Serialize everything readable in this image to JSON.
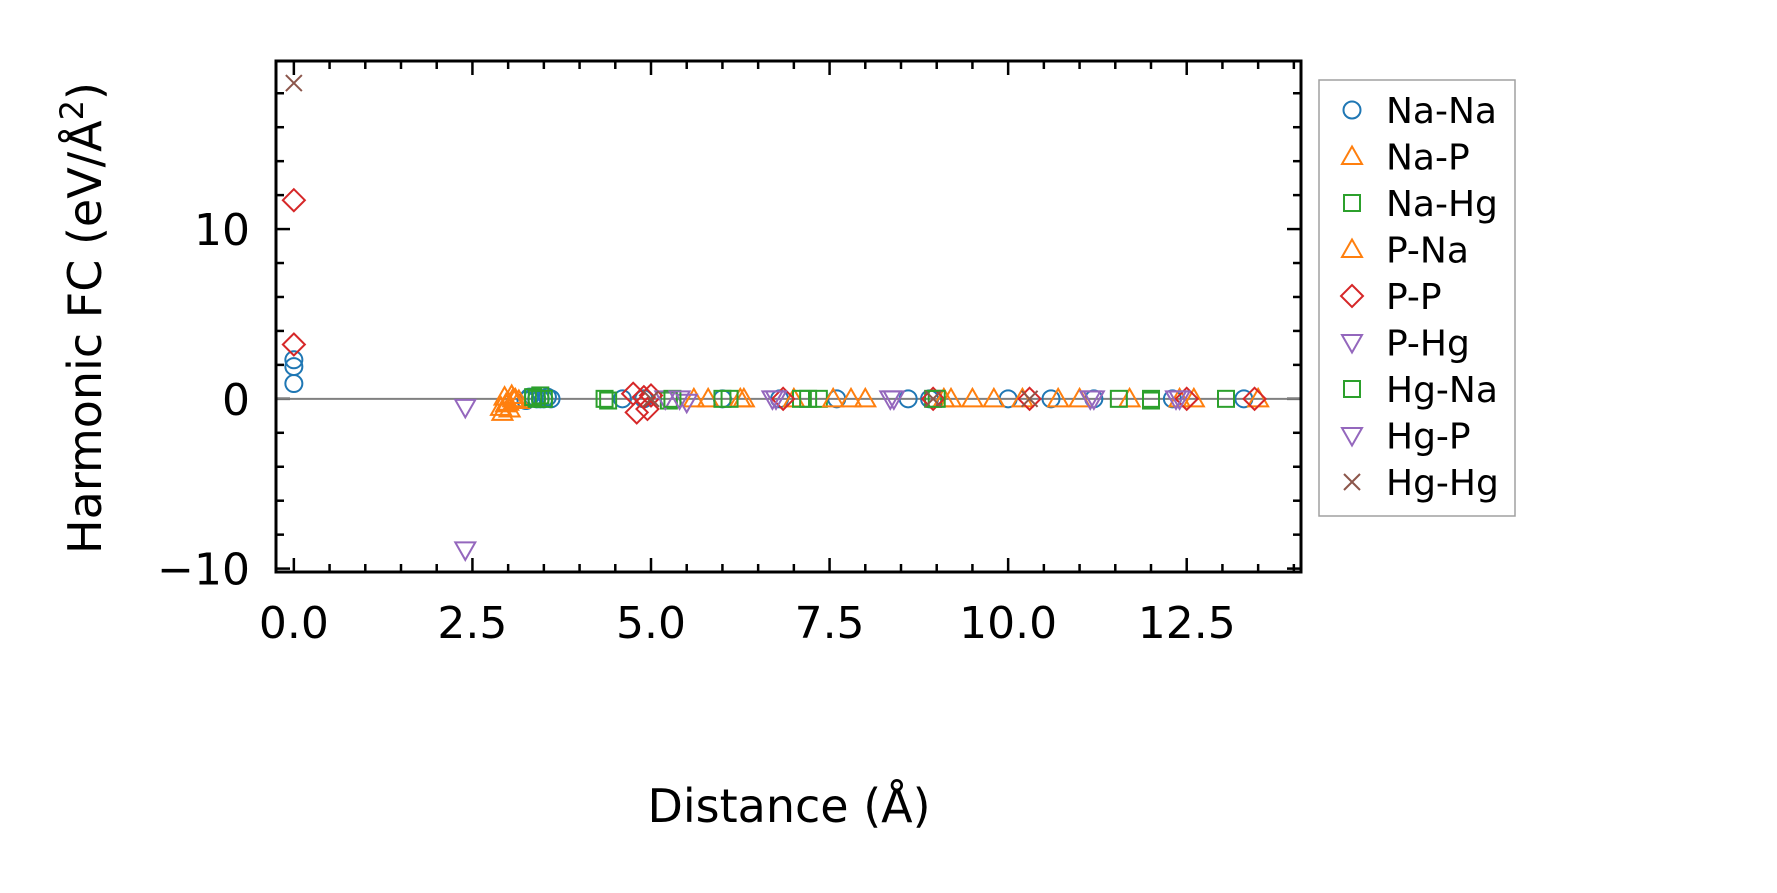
{
  "chart_data": {
    "type": "scatter",
    "title": "",
    "xlabel": "Distance (Å)",
    "ylabel_main": "Harmonic FC (eV/Å",
    "ylabel_sup": "2",
    "ylabel_close": ")",
    "xlim": [
      -0.25,
      14.1
    ],
    "ylim": [
      -10.2,
      19.9
    ],
    "x_ticks": [
      0.0,
      2.5,
      5.0,
      7.5,
      10.0,
      12.5
    ],
    "x_tick_labels": [
      "0.0",
      "2.5",
      "5.0",
      "7.5",
      "10.0",
      "12.5"
    ],
    "y_ticks": [
      -10,
      0,
      10
    ],
    "y_tick_labels": [
      "−10",
      "0",
      "10"
    ],
    "zero_line": true,
    "legend_position": "outside-right",
    "series": [
      {
        "name": "Na-Na",
        "marker": "circle",
        "color": "#1f77b4",
        "points": [
          [
            0,
            0.9
          ],
          [
            0,
            1.9
          ],
          [
            0,
            2.3
          ],
          [
            3.25,
            -0.1
          ],
          [
            3.3,
            0.1
          ],
          [
            3.35,
            0.1
          ],
          [
            3.4,
            0.0
          ],
          [
            3.45,
            0.0
          ],
          [
            3.5,
            0.0
          ],
          [
            3.55,
            0.1
          ],
          [
            3.6,
            0.0
          ],
          [
            4.6,
            0.0
          ],
          [
            4.9,
            0.0
          ],
          [
            6.0,
            0.0
          ],
          [
            6.8,
            0.0
          ],
          [
            7.6,
            0.0
          ],
          [
            8.6,
            0.0
          ],
          [
            8.9,
            0.0
          ],
          [
            10.0,
            0.0
          ],
          [
            10.6,
            0.0
          ],
          [
            11.2,
            0.0
          ],
          [
            12.3,
            0.0
          ],
          [
            13.3,
            0.0
          ]
        ]
      },
      {
        "name": "Na-P",
        "marker": "triangle-up",
        "color": "#ff7f0e",
        "points": [
          [
            2.9,
            -0.5
          ],
          [
            2.95,
            0.1
          ],
          [
            3.0,
            -0.2
          ],
          [
            3.05,
            0.2
          ],
          [
            3.1,
            0.0
          ],
          [
            3.15,
            -0.1
          ],
          [
            5.8,
            0.0
          ],
          [
            6.3,
            0.0
          ],
          [
            7.0,
            0.0
          ],
          [
            7.8,
            0.0
          ],
          [
            8.0,
            0.0
          ],
          [
            9.2,
            0.0
          ],
          [
            9.5,
            0.0
          ],
          [
            9.8,
            0.0
          ],
          [
            10.7,
            0.0
          ],
          [
            11.0,
            0.0
          ],
          [
            11.7,
            0.0
          ],
          [
            12.6,
            0.0
          ],
          [
            13.5,
            0.0
          ]
        ]
      },
      {
        "name": "Na-Hg",
        "marker": "square",
        "color": "#2ca02c",
        "points": [
          [
            3.35,
            0.1
          ],
          [
            3.4,
            0.0
          ],
          [
            3.45,
            0.2
          ],
          [
            4.35,
            0.0
          ],
          [
            5.25,
            -0.1
          ],
          [
            6.0,
            0.0
          ],
          [
            7.1,
            0.0
          ],
          [
            7.35,
            0.0
          ],
          [
            8.95,
            0.0
          ],
          [
            11.55,
            0.0
          ],
          [
            12.0,
            -0.1
          ],
          [
            13.05,
            0.0
          ]
        ]
      },
      {
        "name": "P-Na",
        "marker": "triangle-up",
        "color": "#ff7f0e",
        "points": [
          [
            2.92,
            -0.8
          ],
          [
            2.97,
            -0.3
          ],
          [
            3.02,
            -0.6
          ],
          [
            3.07,
            0.0
          ],
          [
            5.6,
            0.0
          ],
          [
            6.25,
            0.0
          ],
          [
            7.55,
            0.0
          ],
          [
            9.1,
            0.0
          ],
          [
            10.2,
            0.0
          ],
          [
            12.4,
            0.0
          ]
        ]
      },
      {
        "name": "P-P",
        "marker": "diamond",
        "color": "#d62728",
        "points": [
          [
            0,
            3.2
          ],
          [
            0,
            11.7
          ],
          [
            4.75,
            0.3
          ],
          [
            4.8,
            -0.8
          ],
          [
            4.9,
            0.1
          ],
          [
            4.95,
            -0.6
          ],
          [
            5.0,
            0.2
          ],
          [
            6.85,
            0.0
          ],
          [
            8.95,
            0.0
          ],
          [
            10.3,
            0.0
          ],
          [
            12.5,
            0.0
          ],
          [
            13.45,
            0.0
          ]
        ]
      },
      {
        "name": "P-Hg",
        "marker": "triangle-down",
        "color": "#9467bd",
        "points": [
          [
            2.4,
            -0.5
          ],
          [
            2.4,
            -8.9
          ],
          [
            5.2,
            0.0
          ],
          [
            5.5,
            -0.2
          ],
          [
            6.7,
            0.0
          ],
          [
            8.35,
            0.0
          ],
          [
            11.2,
            0.0
          ],
          [
            12.4,
            0.0
          ]
        ]
      },
      {
        "name": "Hg-Na",
        "marker": "square",
        "color": "#2ca02c",
        "points": [
          [
            3.5,
            0.0
          ],
          [
            4.4,
            -0.1
          ],
          [
            5.3,
            0.0
          ],
          [
            6.1,
            0.0
          ],
          [
            7.2,
            0.0
          ],
          [
            9.0,
            0.0
          ],
          [
            12.0,
            0.0
          ]
        ]
      },
      {
        "name": "Hg-P",
        "marker": "triangle-down",
        "color": "#9467bd",
        "points": [
          [
            5.4,
            0.0
          ],
          [
            6.75,
            0.0
          ],
          [
            8.4,
            0.0
          ],
          [
            11.15,
            0.0
          ],
          [
            12.35,
            0.0
          ]
        ]
      },
      {
        "name": "Hg-Hg",
        "marker": "x",
        "color": "#8c564b",
        "points": [
          [
            0,
            18.6
          ],
          [
            5.0,
            0.0
          ],
          [
            8.95,
            0.0
          ],
          [
            10.3,
            0.0
          ]
        ]
      }
    ]
  }
}
